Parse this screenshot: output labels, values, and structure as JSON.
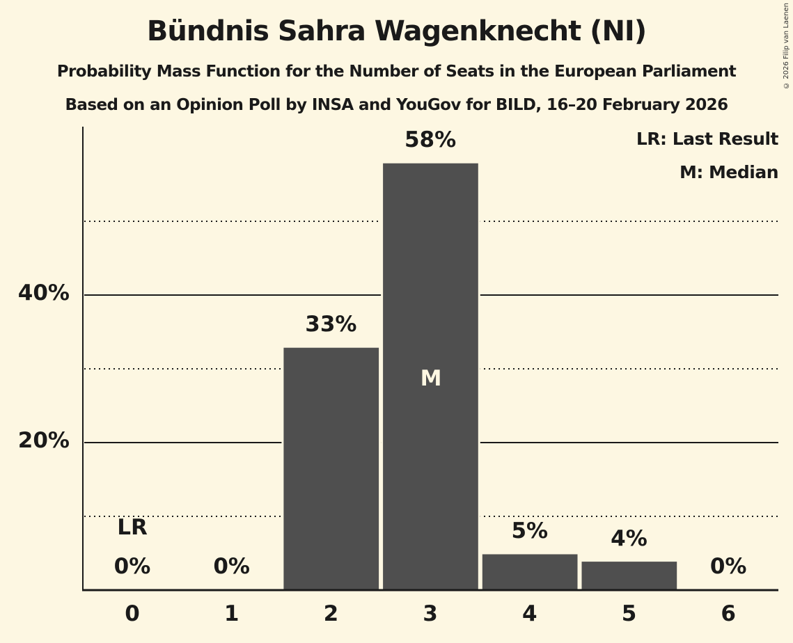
{
  "header": {
    "title": "Bündnis Sahra Wagenknecht (NI)",
    "subtitle": "Probability Mass Function for the Number of Seats in the European Parliament",
    "source": "Based on an Opinion Poll by INSA and YouGov for BILD, 16–20 February 2026",
    "copyright": "© 2026 Filip van Laenen"
  },
  "legend": {
    "last_result": "LR: Last Result",
    "median": "M: Median"
  },
  "markers": {
    "last_result_label": "LR",
    "last_result_seat": 0,
    "median_label": "M",
    "median_seat": 3
  },
  "colors": {
    "background": "#fdf7e2",
    "bar": "#4f4f4f",
    "text": "#1a1a1a"
  },
  "chart_data": {
    "type": "bar",
    "title": "Bündnis Sahra Wagenknecht (NI)",
    "subtitle": "Probability Mass Function for the Number of Seats in the European Parliament",
    "xlabel": "",
    "ylabel": "",
    "categories": [
      "0",
      "1",
      "2",
      "3",
      "4",
      "5",
      "6"
    ],
    "values": [
      0,
      0,
      33,
      58,
      5,
      4,
      0
    ],
    "value_labels": [
      "0%",
      "0%",
      "33%",
      "58%",
      "5%",
      "4%",
      "0%"
    ],
    "yticks": [
      "20%",
      "40%"
    ],
    "ylim": [
      0,
      60
    ],
    "grid": {
      "major": [
        20,
        40
      ],
      "minor_dotted": [
        10,
        30,
        50
      ]
    },
    "legend_position": "top-right",
    "annotations": [
      {
        "seat": 0,
        "label": "LR"
      },
      {
        "seat": 3,
        "label": "M"
      }
    ]
  }
}
